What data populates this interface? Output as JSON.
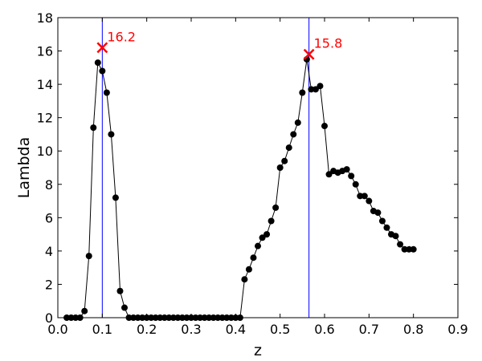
{
  "chart_data": {
    "type": "line",
    "title": "",
    "xlabel": "z",
    "ylabel": "Lambda",
    "xlim": [
      0,
      0.9
    ],
    "ylim": [
      0,
      18
    ],
    "grid": false,
    "x_ticks": [
      "0.0",
      "0.1",
      "0.2",
      "0.3",
      "0.4",
      "0.5",
      "0.6",
      "0.7",
      "0.8",
      "0.9"
    ],
    "y_ticks": [
      "0",
      "2",
      "4",
      "6",
      "8",
      "10",
      "12",
      "14",
      "16",
      "18"
    ],
    "series": [
      {
        "color": "#000000",
        "marker": "circle",
        "x": [
          0.02,
          0.03,
          0.04,
          0.05,
          0.06,
          0.07,
          0.08,
          0.09,
          0.1,
          0.11,
          0.12,
          0.13,
          0.14,
          0.15,
          0.16,
          0.17,
          0.18,
          0.19,
          0.2,
          0.21,
          0.22,
          0.23,
          0.24,
          0.25,
          0.26,
          0.27,
          0.28,
          0.29,
          0.3,
          0.31,
          0.32,
          0.33,
          0.34,
          0.35,
          0.36,
          0.37,
          0.38,
          0.39,
          0.4,
          0.41,
          0.42,
          0.43,
          0.44,
          0.45,
          0.46,
          0.47,
          0.48,
          0.49,
          0.5,
          0.51,
          0.52,
          0.53,
          0.54,
          0.55,
          0.56,
          0.57,
          0.58,
          0.59,
          0.6,
          0.61,
          0.62,
          0.63,
          0.64,
          0.65,
          0.66,
          0.67,
          0.68,
          0.69,
          0.7,
          0.71,
          0.72,
          0.73,
          0.74,
          0.75,
          0.76,
          0.77,
          0.78,
          0.79,
          0.8
        ],
        "y": [
          0,
          0,
          0,
          0,
          0.4,
          3.7,
          11.4,
          15.3,
          14.8,
          13.5,
          11.0,
          7.2,
          1.6,
          0.6,
          0,
          0,
          0,
          0,
          0,
          0,
          0,
          0,
          0,
          0,
          0,
          0,
          0,
          0,
          0,
          0,
          0,
          0,
          0,
          0,
          0,
          0,
          0,
          0,
          0,
          0,
          2.3,
          2.9,
          3.6,
          4.3,
          4.8,
          5.0,
          5.8,
          6.6,
          9.0,
          9.4,
          10.2,
          11.0,
          11.7,
          13.5,
          15.5,
          13.7,
          13.7,
          13.9,
          11.5,
          8.6,
          8.8,
          8.7,
          8.8,
          8.9,
          8.5,
          8.0,
          7.3,
          7.3,
          7.0,
          6.4,
          6.3,
          5.8,
          5.4,
          5.0,
          4.9,
          4.4,
          4.1,
          4.1,
          4.1
        ]
      }
    ],
    "vlines": [
      {
        "x": 0.1,
        "color": "#0000ff"
      },
      {
        "x": 0.565,
        "color": "#0000ff"
      }
    ],
    "peaks": [
      {
        "x": 0.1,
        "y": 16.2,
        "label": "16.2",
        "color": "#ff0000"
      },
      {
        "x": 0.565,
        "y": 15.8,
        "label": "15.8",
        "color": "#ff0000"
      }
    ]
  }
}
